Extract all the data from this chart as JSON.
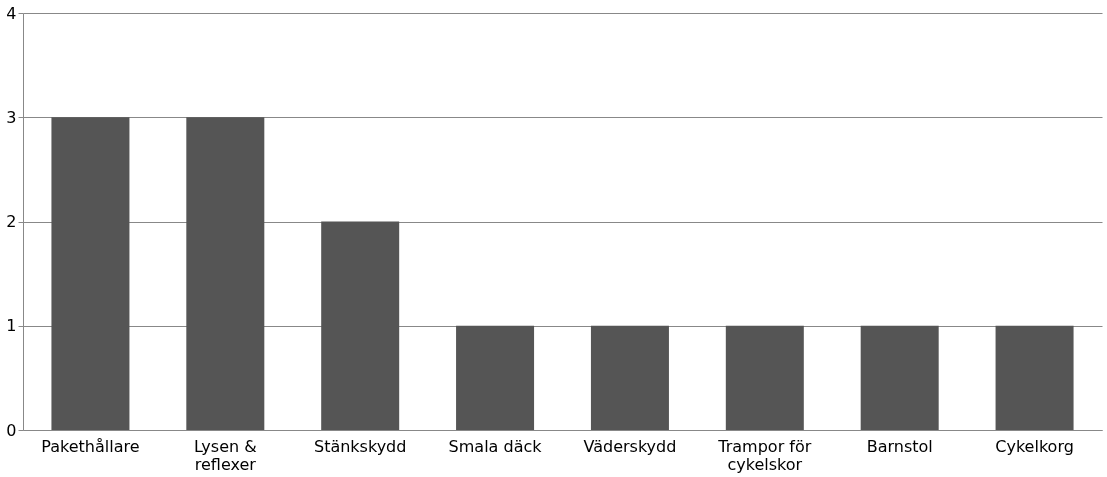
{
  "chart_data": {
    "type": "bar",
    "categories": [
      "Pakethållare",
      "Lysen & reflexer",
      "Stänkskydd",
      "Smala däck",
      "Väderskydd",
      "Trampor för cykelskor",
      "Barnstol",
      "Cykelkorg"
    ],
    "values": [
      3,
      3,
      2,
      1,
      1,
      1,
      1,
      1
    ],
    "color": "#555555",
    "ylim": [
      0,
      4
    ],
    "yticks": [
      0,
      1,
      2,
      3,
      4
    ],
    "grid": "y"
  }
}
